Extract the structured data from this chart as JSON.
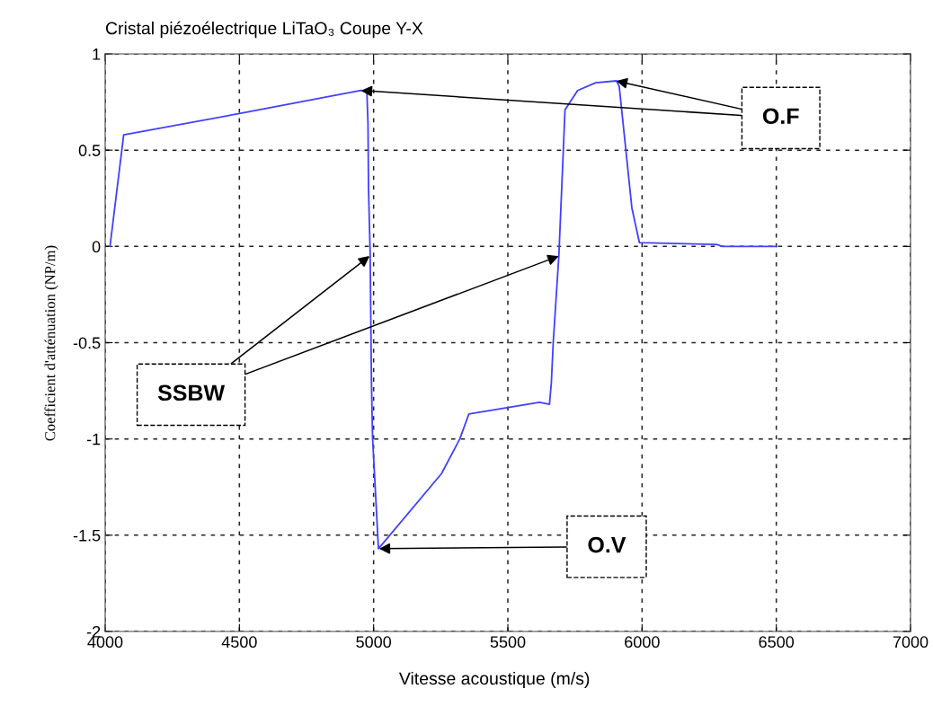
{
  "chart_data": {
    "type": "line",
    "title": "Cristal piézoélectrique LiTaO₃ Coupe Y-X",
    "xlabel": "Vitesse acoustique (m/s)",
    "ylabel": "Coefficient d'atténuation (NP/m)",
    "series": [
      {
        "color": "#4040ff",
        "x": [
          4018,
          4069,
          4500,
          4953,
          4975,
          4979,
          4981,
          4987,
          4992,
          4996,
          5018,
          5253,
          5321,
          5355,
          5618,
          5655,
          5662,
          5669,
          5690,
          5713,
          5760,
          5827,
          5905,
          5915,
          5962,
          5990,
          6277,
          6300,
          6500
        ],
        "values": [
          0,
          0.58,
          0.69,
          0.81,
          0.8,
          0.64,
          0.3,
          -0.03,
          -0.71,
          -0.99,
          -1.57,
          -1.18,
          -1.0,
          -0.87,
          -0.81,
          -0.82,
          -0.71,
          -0.5,
          -0.05,
          0.71,
          0.81,
          0.85,
          0.86,
          0.83,
          0.2,
          0.02,
          0.01,
          0,
          0
        ]
      }
    ],
    "xlim": [
      4000,
      7000
    ],
    "ylim": [
      -2,
      1
    ],
    "xticks": [
      4000,
      4500,
      5000,
      5500,
      6000,
      6500,
      7000
    ],
    "yticks": [
      -2,
      -1.5,
      -1,
      -0.5,
      0,
      0.5,
      1
    ],
    "grid": true,
    "legend": false,
    "marker": "none",
    "line_style": "solid",
    "annotations": [
      {
        "text": "O.F",
        "x": 4953,
        "y": 0.81
      },
      {
        "text": "SSBW",
        "x": 4985,
        "y": -0.05
      },
      {
        "text": "O.V",
        "x": 5020,
        "y": -1.57
      }
    ]
  }
}
